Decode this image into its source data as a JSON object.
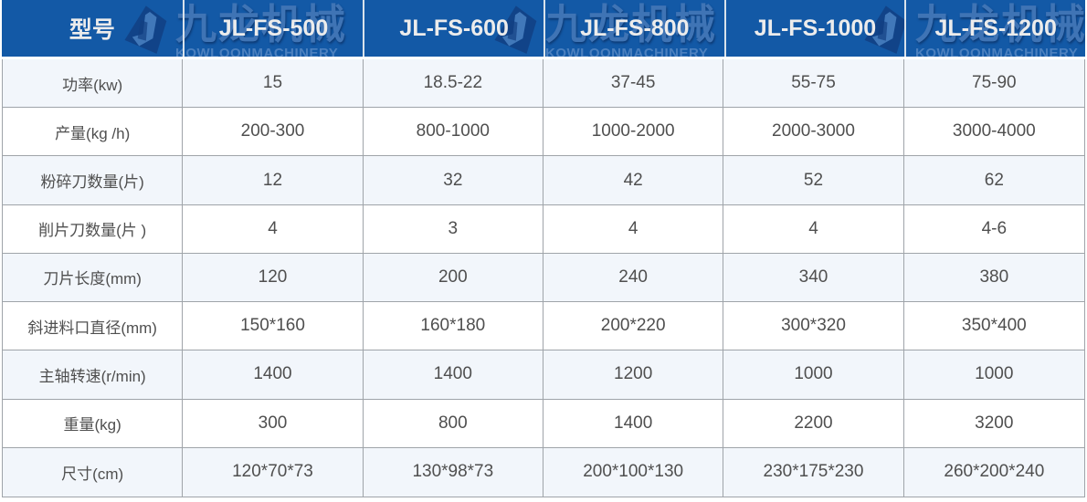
{
  "chart_data": {
    "type": "table",
    "title": "",
    "columns": [
      "型号",
      "JL-FS-500",
      "JL-FS-600",
      "JL-FS-800",
      "JL-FS-1000",
      "JL-FS-1200"
    ],
    "rows": [
      [
        "功率(kw)",
        "15",
        "18.5-22",
        "37-45",
        "55-75",
        "75-90"
      ],
      [
        "产量(kg /h)",
        "200-300",
        "800-1000",
        "1000-2000",
        "2000-3000",
        "3000-4000"
      ],
      [
        "粉碎刀数量(片)",
        "12",
        "32",
        "42",
        "52",
        "62"
      ],
      [
        "削片刀数量(片 )",
        "4",
        "3",
        "4",
        "4",
        "4-6"
      ],
      [
        "刀片长度(mm)",
        "120",
        "200",
        "240",
        "340",
        "380"
      ],
      [
        "斜进料口直径(mm)",
        "150*160",
        "160*180",
        "200*220",
        "300*320",
        "350*400"
      ],
      [
        "主轴转速(r/min)",
        "1400",
        "1400",
        "1200",
        "1000",
        "1000"
      ],
      [
        "重量(kg)",
        "300",
        "800",
        "1400",
        "2200",
        "3200"
      ],
      [
        "尺寸(cm)",
        "120*70*73",
        "130*98*73",
        "200*100*130",
        "230*175*230",
        "260*200*240"
      ]
    ],
    "layout": {
      "header_row": true,
      "grid": true,
      "alternating_rows": true,
      "legend": "none"
    }
  },
  "watermark": {
    "cn": "九龙机械",
    "en": "KOWLOONMACHINERY"
  },
  "colors": {
    "header_bg": "#1359a6",
    "header_text": "#ececec",
    "header_divider": "#d9e2eb",
    "border": "#9fa4a9",
    "row_light": "#f2f6fb",
    "row_white": "#ffffff",
    "cell_text": "#4f4f4f",
    "watermark_cn": "#3f74b5",
    "watermark_en": "#4b80bf",
    "logo_dark": "#123f82",
    "logo_light": "#4e86c6"
  }
}
